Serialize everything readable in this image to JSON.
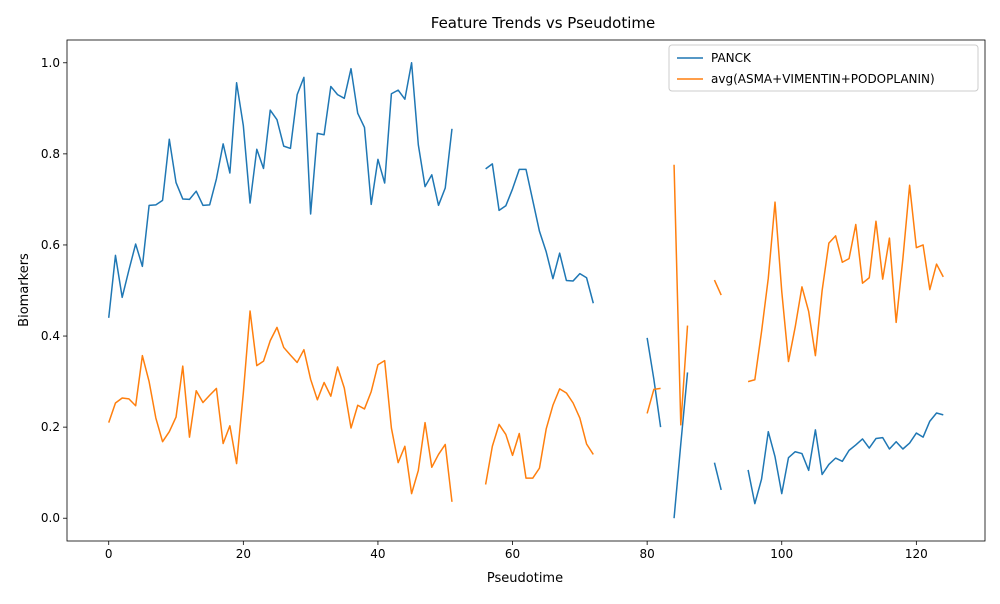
{
  "chart_data": {
    "type": "line",
    "title": "Feature Trends vs Pseudotime",
    "xlabel": "Pseudotime",
    "ylabel": "Biomarkers",
    "xlim": [
      -6.2,
      130.2
    ],
    "ylim": [
      -0.05,
      1.05
    ],
    "xticks": [
      0,
      20,
      40,
      60,
      80,
      100,
      120
    ],
    "yticks": [
      0.0,
      0.2,
      0.4,
      0.6,
      0.8,
      1.0
    ],
    "xtick_labels": [
      "0",
      "20",
      "40",
      "60",
      "80",
      "100",
      "120"
    ],
    "ytick_labels": [
      "0.0",
      "0.2",
      "0.4",
      "0.6",
      "0.8",
      "1.0"
    ],
    "grid": false,
    "legend_position": "upper-right",
    "series": [
      {
        "name": "PANCK",
        "color": "#1f77b4",
        "x": [
          0,
          1,
          2,
          3,
          4,
          5,
          6,
          7,
          8,
          9,
          10,
          11,
          12,
          13,
          14,
          15,
          16,
          17,
          18,
          19,
          20,
          21,
          22,
          23,
          24,
          25,
          26,
          27,
          28,
          29,
          30,
          31,
          32,
          33,
          34,
          35,
          36,
          37,
          38,
          39,
          40,
          41,
          42,
          43,
          44,
          45,
          46,
          47,
          48,
          49,
          50,
          51,
          52,
          53,
          54,
          55,
          56,
          57,
          58,
          59,
          60,
          61,
          62,
          63,
          64,
          65,
          66,
          67,
          68,
          69,
          70,
          71,
          72,
          73,
          74,
          75,
          76,
          77,
          78,
          79,
          80,
          81,
          82,
          83,
          84,
          85,
          86,
          87,
          88,
          89,
          90,
          91,
          92,
          93,
          94,
          95,
          96,
          97,
          98,
          99,
          100,
          101,
          102,
          103,
          104,
          105,
          106,
          107,
          108,
          109,
          110,
          111,
          112,
          113,
          114,
          115,
          116,
          117,
          118,
          119,
          120,
          121,
          122,
          123,
          124
        ],
        "y": [
          0.44,
          0.577,
          0.485,
          0.545,
          0.602,
          0.553,
          0.687,
          0.688,
          0.698,
          0.832,
          0.737,
          0.701,
          0.7,
          0.718,
          0.687,
          0.688,
          0.745,
          0.822,
          0.758,
          0.956,
          0.862,
          0.692,
          0.81,
          0.768,
          0.896,
          0.875,
          0.817,
          0.812,
          0.93,
          0.968,
          0.668,
          0.845,
          0.842,
          0.948,
          0.93,
          0.922,
          0.987,
          0.889,
          0.858,
          0.689,
          0.788,
          0.736,
          0.932,
          0.94,
          0.92,
          1.0,
          0.82,
          0.728,
          0.754,
          0.687,
          0.725,
          0.855,
          null,
          null,
          null,
          null,
          0.767,
          0.778,
          0.676,
          0.686,
          0.723,
          0.766,
          0.766,
          0.698,
          0.63,
          0.585,
          0.526,
          0.582,
          0.522,
          0.521,
          0.537,
          0.528,
          0.472,
          null,
          null,
          null,
          null,
          null,
          null,
          null,
          0.396,
          0.305,
          0.2,
          null,
          0.0,
          0.163,
          0.32,
          null,
          null,
          null,
          0.122,
          0.062,
          null,
          null,
          null,
          0.106,
          0.032,
          0.086,
          0.19,
          0.135,
          0.054,
          0.133,
          0.146,
          0.142,
          0.105,
          0.194,
          0.096,
          0.118,
          0.132,
          0.125,
          0.149,
          0.161,
          0.174,
          0.154,
          0.175,
          0.177,
          0.152,
          0.168,
          0.152,
          0.165,
          0.187,
          0.178,
          0.213,
          0.231,
          0.227
        ]
      },
      {
        "name": "avg(ASMA+VIMENTIN+PODOPLANIN)",
        "color": "#ff7f0e",
        "x": [
          0,
          1,
          2,
          3,
          4,
          5,
          6,
          7,
          8,
          9,
          10,
          11,
          12,
          13,
          14,
          15,
          16,
          17,
          18,
          19,
          20,
          21,
          22,
          23,
          24,
          25,
          26,
          27,
          28,
          29,
          30,
          31,
          32,
          33,
          34,
          35,
          36,
          37,
          38,
          39,
          40,
          41,
          42,
          43,
          44,
          45,
          46,
          47,
          48,
          49,
          50,
          51,
          52,
          53,
          54,
          55,
          56,
          57,
          58,
          59,
          60,
          61,
          62,
          63,
          64,
          65,
          66,
          67,
          68,
          69,
          70,
          71,
          72,
          73,
          74,
          75,
          76,
          77,
          78,
          79,
          80,
          81,
          82,
          83,
          84,
          85,
          86,
          87,
          88,
          89,
          90,
          91,
          92,
          93,
          94,
          95,
          96,
          97,
          98,
          99,
          100,
          101,
          102,
          103,
          104,
          105,
          106,
          107,
          108,
          109,
          110,
          111,
          112,
          113,
          114,
          115,
          116,
          117,
          118,
          119,
          120,
          121,
          122,
          123,
          124
        ],
        "y": [
          0.21,
          0.253,
          0.264,
          0.262,
          0.247,
          0.357,
          0.3,
          0.22,
          0.168,
          0.19,
          0.222,
          0.334,
          0.178,
          0.28,
          0.254,
          0.27,
          0.285,
          0.164,
          0.203,
          0.12,
          0.275,
          0.455,
          0.335,
          0.345,
          0.39,
          0.419,
          0.375,
          0.358,
          0.342,
          0.37,
          0.305,
          0.26,
          0.298,
          0.268,
          0.332,
          0.286,
          0.198,
          0.248,
          0.24,
          0.278,
          0.337,
          0.346,
          0.198,
          0.122,
          0.158,
          0.054,
          0.105,
          0.21,
          0.112,
          0.14,
          0.162,
          0.036,
          null,
          null,
          null,
          null,
          0.074,
          0.158,
          0.206,
          0.184,
          0.138,
          0.186,
          0.088,
          0.088,
          0.11,
          0.196,
          0.248,
          0.284,
          0.275,
          0.253,
          0.22,
          0.163,
          0.14,
          null,
          null,
          null,
          null,
          null,
          null,
          null,
          0.23,
          0.283,
          0.285,
          null,
          0.776,
          0.205,
          0.423,
          null,
          null,
          null,
          0.523,
          0.49,
          null,
          null,
          null,
          0.3,
          0.304,
          0.41,
          0.527,
          0.694,
          0.498,
          0.344,
          0.42,
          0.508,
          0.454,
          0.357,
          0.5,
          0.604,
          0.62,
          0.562,
          0.57,
          0.645,
          0.516,
          0.528,
          0.652,
          0.525,
          0.615,
          0.43,
          0.57,
          0.731,
          0.594,
          0.6,
          0.502,
          0.558,
          0.53
        ]
      }
    ]
  }
}
